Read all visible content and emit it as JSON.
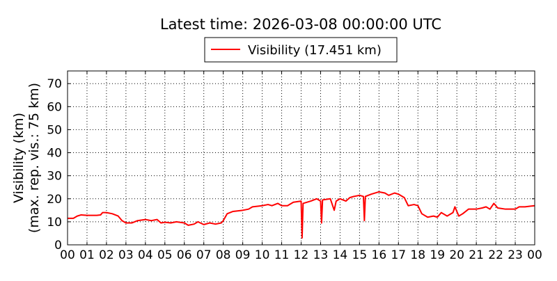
{
  "chart_data": {
    "type": "line",
    "title": "Latest time: 2026-03-08 00:00:00 UTC",
    "ylabel": [
      "Visibility (km)",
      "(max. rep. vis.: 75 km)"
    ],
    "x": [
      0,
      0.3,
      0.5,
      0.7,
      1,
      1.5,
      1.7,
      1.8,
      2.0,
      2.3,
      2.6,
      2.8,
      3.0,
      3.3,
      3.6,
      4,
      4.3,
      4.6,
      4.8,
      5,
      5.3,
      5.6,
      6,
      6.2,
      6.5,
      6.7,
      7,
      7.3,
      7.6,
      7.9,
      8,
      8.2,
      8.5,
      9,
      9.3,
      9.5,
      10,
      10.3,
      10.5,
      10.8,
      11,
      11.3,
      11.6,
      12,
      12.05,
      12.1,
      12.5,
      12.8,
      13,
      13.05,
      13.1,
      13.5,
      13.7,
      13.8,
      14,
      14.3,
      14.5,
      14.7,
      15,
      15.2,
      15.25,
      15.3,
      15.6,
      16,
      16.3,
      16.5,
      16.8,
      17,
      17.3,
      17.5,
      17.8,
      18,
      18.2,
      18.5,
      18.8,
      19,
      19.2,
      19.5,
      19.8,
      19.9,
      20.1,
      20.3,
      20.6,
      21,
      21.3,
      21.5,
      21.7,
      21.9,
      22.1,
      22.5,
      23,
      23.2,
      23.5,
      24
    ],
    "series": [
      {
        "name": "Visibility (17.451 km)",
        "color": "#ff0000",
        "values": [
          11.5,
          11.5,
          12.5,
          13,
          12.8,
          12.8,
          13,
          14,
          14,
          13.5,
          12.5,
          10.5,
          9.5,
          9.5,
          10.5,
          11,
          10.5,
          11,
          9.5,
          9.8,
          9.5,
          10,
          9.5,
          8.5,
          9,
          10,
          8.8,
          9.5,
          9,
          9.5,
          10.5,
          13.5,
          14.5,
          15,
          15.5,
          16.5,
          17,
          17.5,
          17,
          18,
          17,
          17,
          18.5,
          19,
          3,
          18,
          19,
          20,
          19,
          9.5,
          19.5,
          20,
          15,
          19,
          20,
          19,
          20.5,
          21,
          21.5,
          21,
          10.5,
          21,
          22,
          23,
          22.5,
          21.5,
          22.5,
          22,
          20.5,
          17,
          17.5,
          17,
          13.5,
          12,
          12.5,
          12,
          14,
          12.5,
          14,
          16.5,
          12.5,
          13.5,
          15.5,
          15.5,
          16,
          16.5,
          15.5,
          18,
          16,
          15.5,
          15.5,
          16.5,
          16.5,
          17
        ]
      }
    ],
    "xlim": [
      0,
      24
    ],
    "xticks": [
      {
        "value": 0,
        "label": "00"
      },
      {
        "value": 1,
        "label": "01"
      },
      {
        "value": 2,
        "label": "02"
      },
      {
        "value": 3,
        "label": "03"
      },
      {
        "value": 4,
        "label": "04"
      },
      {
        "value": 5,
        "label": "05"
      },
      {
        "value": 6,
        "label": "06"
      },
      {
        "value": 7,
        "label": "07"
      },
      {
        "value": 8,
        "label": "08"
      },
      {
        "value": 9,
        "label": "09"
      },
      {
        "value": 10,
        "label": "10"
      },
      {
        "value": 11,
        "label": "11"
      },
      {
        "value": 12,
        "label": "12"
      },
      {
        "value": 13,
        "label": "13"
      },
      {
        "value": 14,
        "label": "14"
      },
      {
        "value": 15,
        "label": "15"
      },
      {
        "value": 16,
        "label": "16"
      },
      {
        "value": 17,
        "label": "17"
      },
      {
        "value": 18,
        "label": "18"
      },
      {
        "value": 19,
        "label": "19"
      },
      {
        "value": 20,
        "label": "20"
      },
      {
        "value": 21,
        "label": "21"
      },
      {
        "value": 22,
        "label": "22"
      },
      {
        "value": 23,
        "label": "23"
      },
      {
        "value": 24,
        "label": "00"
      }
    ],
    "ylim": [
      0,
      75.5
    ],
    "yticks": [
      0,
      10,
      20,
      30,
      40,
      50,
      60,
      70
    ],
    "grid": true
  }
}
